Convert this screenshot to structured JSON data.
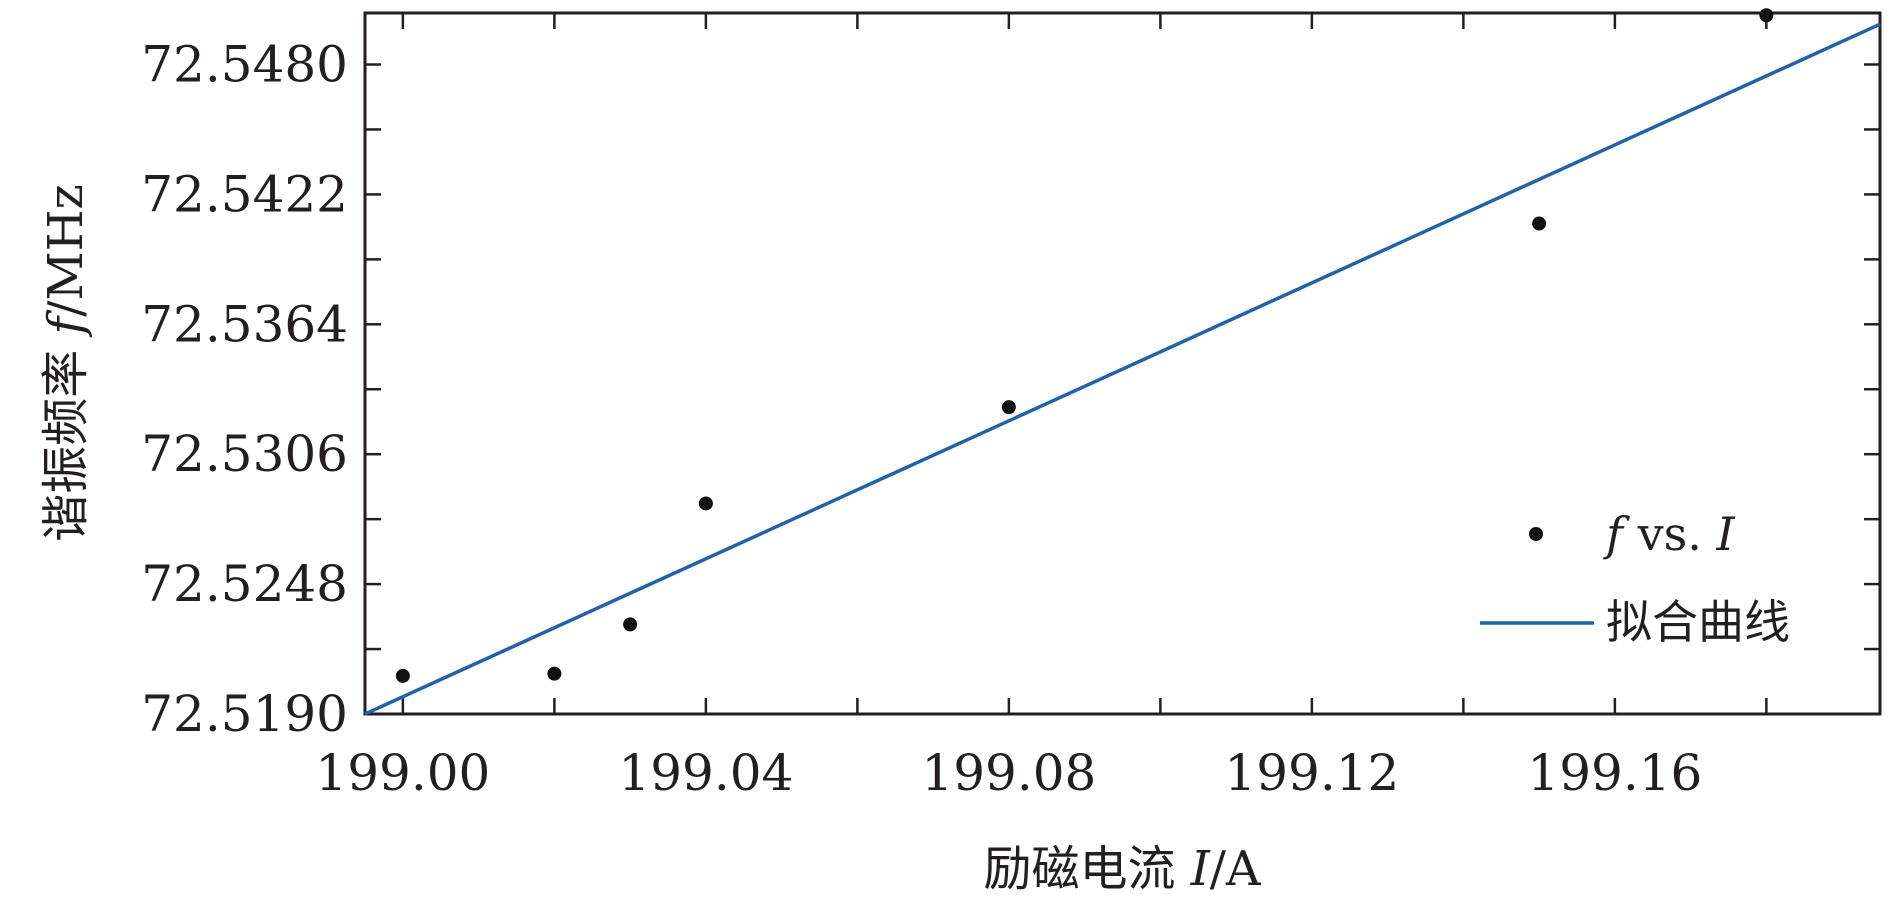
{
  "chart_data": {
    "type": "scatter",
    "xlabel": {
      "prefix": "励磁电流 ",
      "var": "I",
      "suffix": "/A"
    },
    "ylabel": {
      "prefix": "谐振频率 ",
      "var": "f",
      "suffix": "/MHz"
    },
    "xlim": [
      198.995,
      199.195
    ],
    "ylim": [
      72.519,
      72.5503
    ],
    "x_ticks": [
      "199.00",
      "199.04",
      "199.08",
      "199.12",
      "199.16"
    ],
    "y_ticks": [
      "72.5190",
      "72.5248",
      "72.5306",
      "72.5364",
      "72.5422",
      "72.5480"
    ],
    "series": [
      {
        "name": "f vs. I",
        "kind": "scatter",
        "color": "#111111",
        "x": [
          199.0,
          199.02,
          199.03,
          199.04,
          199.08,
          199.15,
          199.18
        ],
        "y": [
          72.5207,
          72.5208,
          72.523,
          72.5284,
          72.5327,
          72.5409,
          72.5502
        ]
      },
      {
        "name": "拟合曲线",
        "kind": "line",
        "color": "#1f63a8",
        "x": [
          198.995,
          199.195
        ],
        "y": [
          72.519,
          72.5498
        ]
      }
    ],
    "legend": {
      "position": "center-right",
      "scatter_label": {
        "var": "f",
        "text": " vs. ",
        "var2": "I"
      },
      "line_label": "拟合曲线"
    },
    "grid": false
  }
}
